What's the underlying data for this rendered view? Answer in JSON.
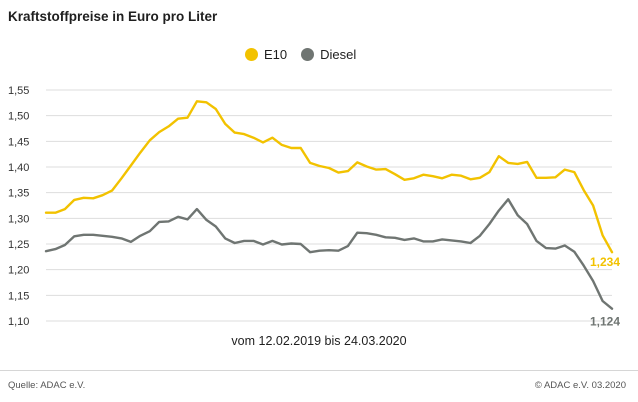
{
  "title": "Kraftstoffpreise in Euro pro Liter",
  "caption": "vom 12.02.2019 bis 24.03.2020",
  "source": "Quelle: ADAC e.V.",
  "copyright": "© ADAC e.V.   03.2020",
  "chart_data": {
    "type": "line",
    "title": "Kraftstoffpreise in Euro pro Liter",
    "xlabel": "vom 12.02.2019 bis 24.03.2020",
    "ylabel": "",
    "ylim": [
      1.1,
      1.55
    ],
    "yticks": [
      "1,55",
      "1,50",
      "1,45",
      "1,40",
      "1,35",
      "1,30",
      "1,25",
      "1,20",
      "1,15",
      "1,10"
    ],
    "grid": true,
    "legend_position": "top-center",
    "series": [
      {
        "name": "E10",
        "color": "#f2c200",
        "end_label": "1,234",
        "values": [
          1.311,
          1.311,
          1.318,
          1.336,
          1.34,
          1.339,
          1.345,
          1.354,
          1.378,
          1.403,
          1.428,
          1.452,
          1.468,
          1.479,
          1.494,
          1.496,
          1.528,
          1.526,
          1.513,
          1.484,
          1.467,
          1.464,
          1.457,
          1.448,
          1.457,
          1.443,
          1.437,
          1.437,
          1.408,
          1.402,
          1.398,
          1.389,
          1.392,
          1.409,
          1.401,
          1.395,
          1.396,
          1.386,
          1.375,
          1.378,
          1.385,
          1.382,
          1.378,
          1.385,
          1.383,
          1.376,
          1.379,
          1.39,
          1.421,
          1.408,
          1.406,
          1.41,
          1.379,
          1.379,
          1.38,
          1.395,
          1.39,
          1.355,
          1.325,
          1.267,
          1.234
        ]
      },
      {
        "name": "Diesel",
        "color": "#6f7572",
        "end_label": "1,124",
        "values": [
          1.236,
          1.24,
          1.248,
          1.265,
          1.268,
          1.268,
          1.266,
          1.264,
          1.261,
          1.254,
          1.266,
          1.275,
          1.293,
          1.294,
          1.303,
          1.298,
          1.318,
          1.297,
          1.284,
          1.261,
          1.252,
          1.256,
          1.256,
          1.249,
          1.256,
          1.249,
          1.251,
          1.25,
          1.234,
          1.237,
          1.238,
          1.237,
          1.246,
          1.272,
          1.271,
          1.268,
          1.263,
          1.262,
          1.258,
          1.261,
          1.255,
          1.255,
          1.259,
          1.257,
          1.255,
          1.252,
          1.266,
          1.289,
          1.315,
          1.337,
          1.306,
          1.289,
          1.256,
          1.242,
          1.241,
          1.247,
          1.235,
          1.208,
          1.178,
          1.139,
          1.124
        ]
      }
    ]
  }
}
